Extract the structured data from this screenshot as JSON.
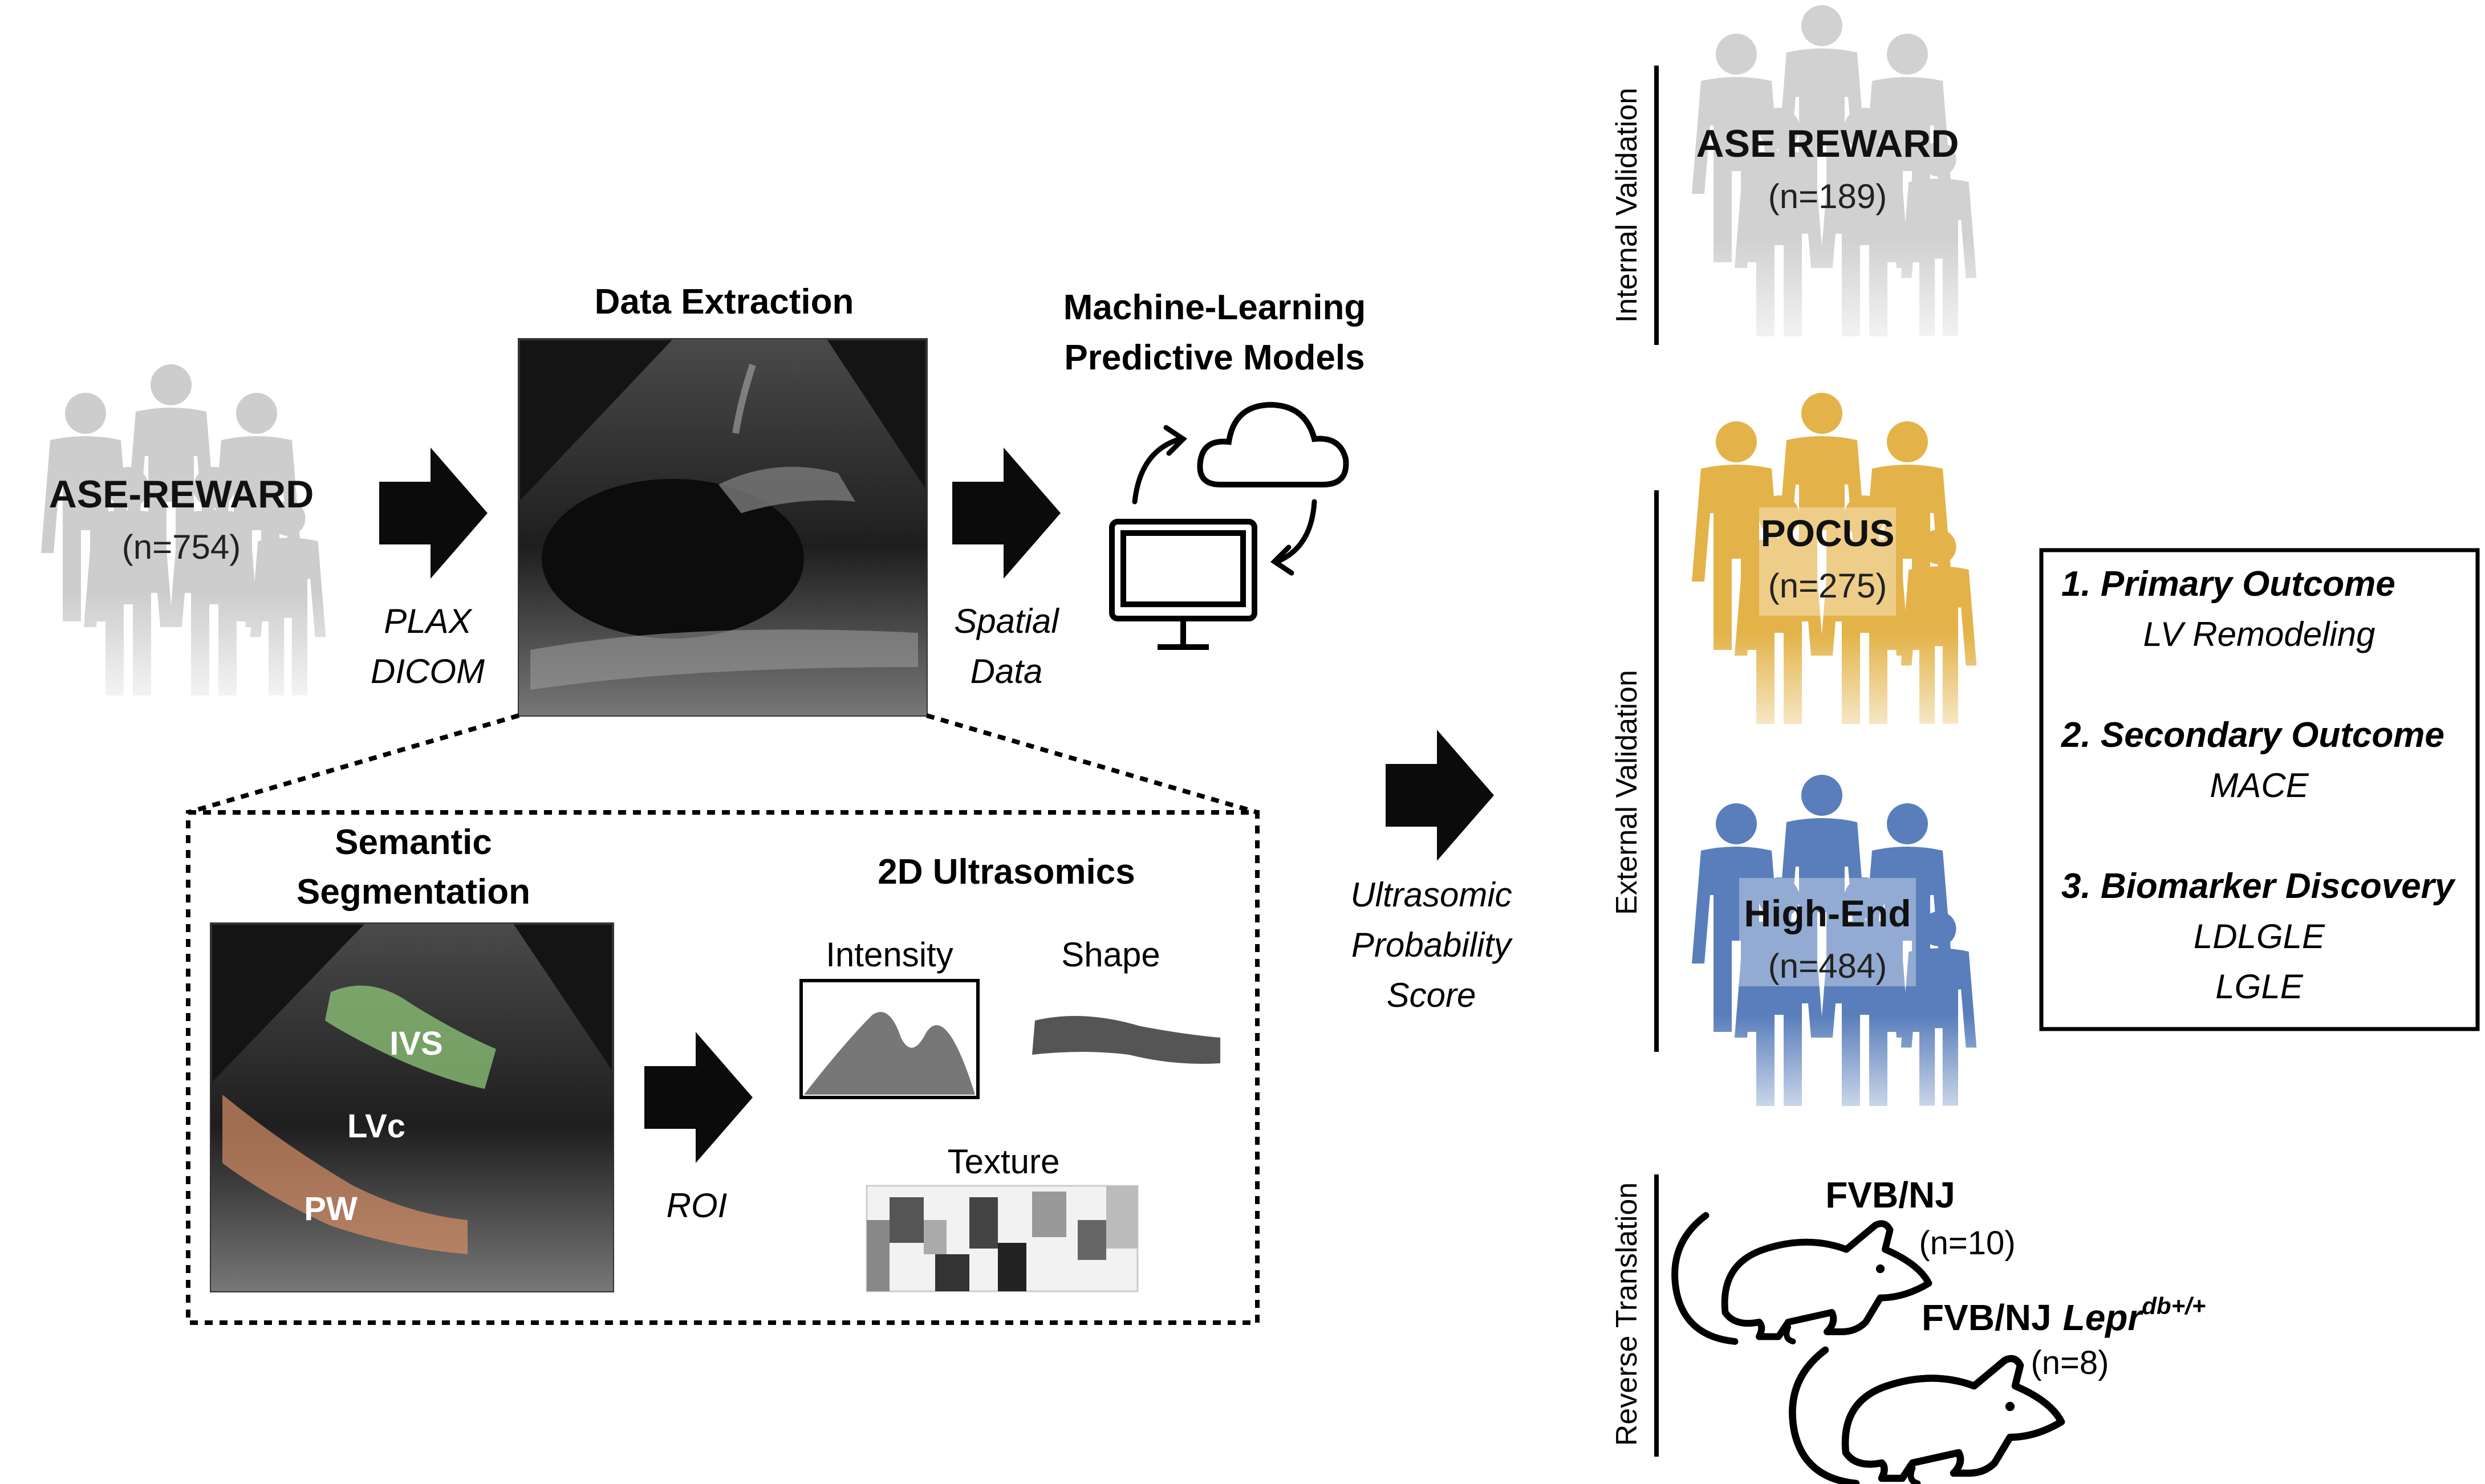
{
  "left_cohort": {
    "name": "ASE-REWARD",
    "n": "(n=754)"
  },
  "arrow1_label": {
    "line1": "PLAX",
    "line2": "DICOM"
  },
  "data_extraction": {
    "title": "Data Extraction"
  },
  "arrow2_label": {
    "line1": "Spatial",
    "line2": "Data"
  },
  "ml": {
    "title_line1": "Machine-Learning",
    "title_line2": "Predictive Models"
  },
  "segmentation": {
    "title_line1": "Semantic",
    "title_line2": "Segmentation",
    "labels": {
      "ivs": "IVS",
      "lvc": "LVc",
      "pw": "PW"
    }
  },
  "roi_label": "ROI",
  "ultrasomics": {
    "title": "2D Ultrasomics",
    "intensity": "Intensity",
    "shape": "Shape",
    "texture": "Texture"
  },
  "score_label": {
    "line1": "Ultrasomic",
    "line2": "Probability",
    "line3": "Score"
  },
  "validation": {
    "internal_label": "Internal Validation",
    "external_label": "External Validation",
    "reverse_label": "Reverse Translation",
    "internal_cohort": {
      "name": "ASE REWARD",
      "n": "(n=189)"
    },
    "pocus": {
      "name": "POCUS",
      "n": "(n=275)"
    },
    "highend": {
      "name": "High-End",
      "n": "(n=484)"
    },
    "mouse1": {
      "name": "FVB/NJ",
      "n": "(n=10)"
    },
    "mouse2": {
      "name": "FVB/NJ",
      "gene": "Lepr",
      "sup": "db+/+",
      "n": "(n=8)"
    }
  },
  "outcomes": {
    "primary_title": "1. Primary Outcome",
    "primary_value": "LV Remodeling",
    "secondary_title": "2. Secondary Outcome",
    "secondary_value": "MACE",
    "biomarker_title": "3. Biomarker Discovery",
    "biomarker_value1": "LDLGLE",
    "biomarker_value2": "LGLE"
  },
  "colors": {
    "gray_people": "#b9b9b9",
    "gold_people": "#dfa62a",
    "blue_people": "#3d68b0",
    "arrow": "#0b0b0b"
  }
}
